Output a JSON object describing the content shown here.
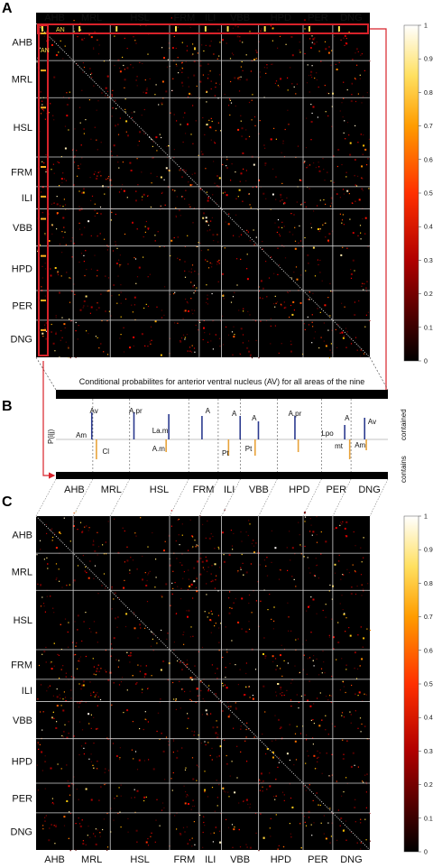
{
  "panel_a": {
    "letter": "A",
    "an_label": "AN"
  },
  "panel_b": {
    "letter": "B",
    "title": "Conditional probabilites for anterior ventral nucleus (AV) for all areas  of the nine",
    "y_label": "P(i|j)",
    "right_label_top": "contained",
    "right_label_bottom": "contains",
    "annotations": [
      "Av",
      "Am",
      "Cl",
      "A.pr",
      "La.m",
      "A.m",
      "A",
      "Pt",
      "A",
      "A",
      "Pt",
      "A.pr",
      "Lpo",
      "A",
      "mt",
      "Av",
      "Am"
    ]
  },
  "panel_c": {
    "letter": "C"
  },
  "areas": [
    "AHB",
    "MRL",
    "HSL",
    "FRM",
    "ILI",
    "VBB",
    "HPD",
    "PER",
    "DNG"
  ],
  "area_weights": [
    5,
    5,
    8,
    4,
    3,
    5,
    6,
    4,
    5
  ],
  "colorbar": {
    "ticks": [
      "1",
      "0.9",
      "0.8",
      "0.7",
      "0.6",
      "0.5",
      "0.4",
      "0.3",
      "0.2",
      "0.1",
      "0"
    ]
  },
  "colors": {
    "outline_red": "#d8222a",
    "bar_blue": "#2b3a8f",
    "bar_orange": "#e8a33a",
    "label_yellow": "#ffe14a"
  }
}
